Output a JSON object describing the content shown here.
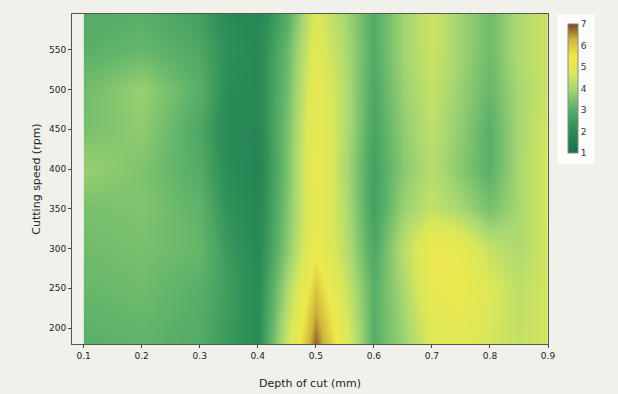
{
  "chart_data": {
    "type": "contour",
    "x_label": "Depth of cut (mm)",
    "y_label": "Cutting speed (rpm)",
    "x": [
      0.1,
      0.2,
      0.3,
      0.35,
      0.4,
      0.45,
      0.5,
      0.55,
      0.6,
      0.65,
      0.7,
      0.75,
      0.8,
      0.85,
      0.9
    ],
    "y": [
      180,
      250,
      300,
      350,
      400,
      450,
      500,
      550,
      595
    ],
    "z": [
      [
        3.0,
        3.1,
        2.9,
        2.4,
        2.0,
        4.5,
        6.8,
        5.0,
        3.0,
        3.8,
        4.8,
        5.0,
        4.6,
        4.4,
        4.6
      ],
      [
        3.2,
        3.3,
        3.0,
        2.5,
        2.0,
        4.0,
        6.0,
        4.6,
        3.0,
        4.0,
        5.2,
        5.4,
        4.8,
        4.3,
        4.6
      ],
      [
        3.3,
        3.4,
        3.2,
        2.4,
        1.9,
        3.6,
        5.4,
        4.3,
        2.8,
        4.2,
        5.4,
        5.2,
        4.4,
        4.1,
        4.6
      ],
      [
        3.4,
        3.5,
        3.1,
        2.2,
        1.8,
        3.5,
        5.3,
        4.2,
        2.6,
        3.8,
        4.4,
        4.0,
        3.4,
        4.0,
        4.7
      ],
      [
        3.8,
        3.5,
        2.9,
        2.0,
        1.7,
        3.4,
        5.4,
        4.1,
        2.6,
        3.6,
        4.2,
        3.6,
        3.0,
        4.0,
        4.7
      ],
      [
        3.4,
        3.7,
        2.8,
        1.9,
        1.8,
        3.4,
        5.3,
        4.2,
        2.7,
        3.7,
        4.3,
        3.7,
        3.0,
        4.0,
        4.6
      ],
      [
        3.3,
        3.8,
        3.0,
        2.0,
        1.9,
        3.3,
        5.2,
        4.2,
        2.8,
        3.8,
        4.4,
        3.8,
        3.2,
        4.0,
        4.5
      ],
      [
        3.0,
        3.2,
        2.8,
        2.1,
        1.9,
        3.2,
        5.0,
        4.1,
        2.9,
        3.9,
        4.5,
        3.9,
        3.3,
        4.1,
        4.5
      ],
      [
        2.9,
        3.0,
        2.6,
        2.0,
        1.8,
        2.9,
        4.8,
        4.0,
        2.9,
        3.9,
        4.5,
        3.9,
        3.3,
        4.1,
        4.5
      ]
    ],
    "xlim": [
      0.08,
      0.9
    ],
    "xticks": [
      0.1,
      0.2,
      0.3,
      0.4,
      0.5,
      0.6,
      0.7,
      0.8,
      0.9
    ],
    "ylim": [
      180,
      595
    ],
    "yticks": [
      200,
      250,
      300,
      350,
      400,
      450,
      500,
      550
    ],
    "colorbar_range": [
      1,
      7
    ],
    "colorbar_ticks": [
      1,
      2,
      3,
      4,
      5,
      6,
      7
    ]
  }
}
